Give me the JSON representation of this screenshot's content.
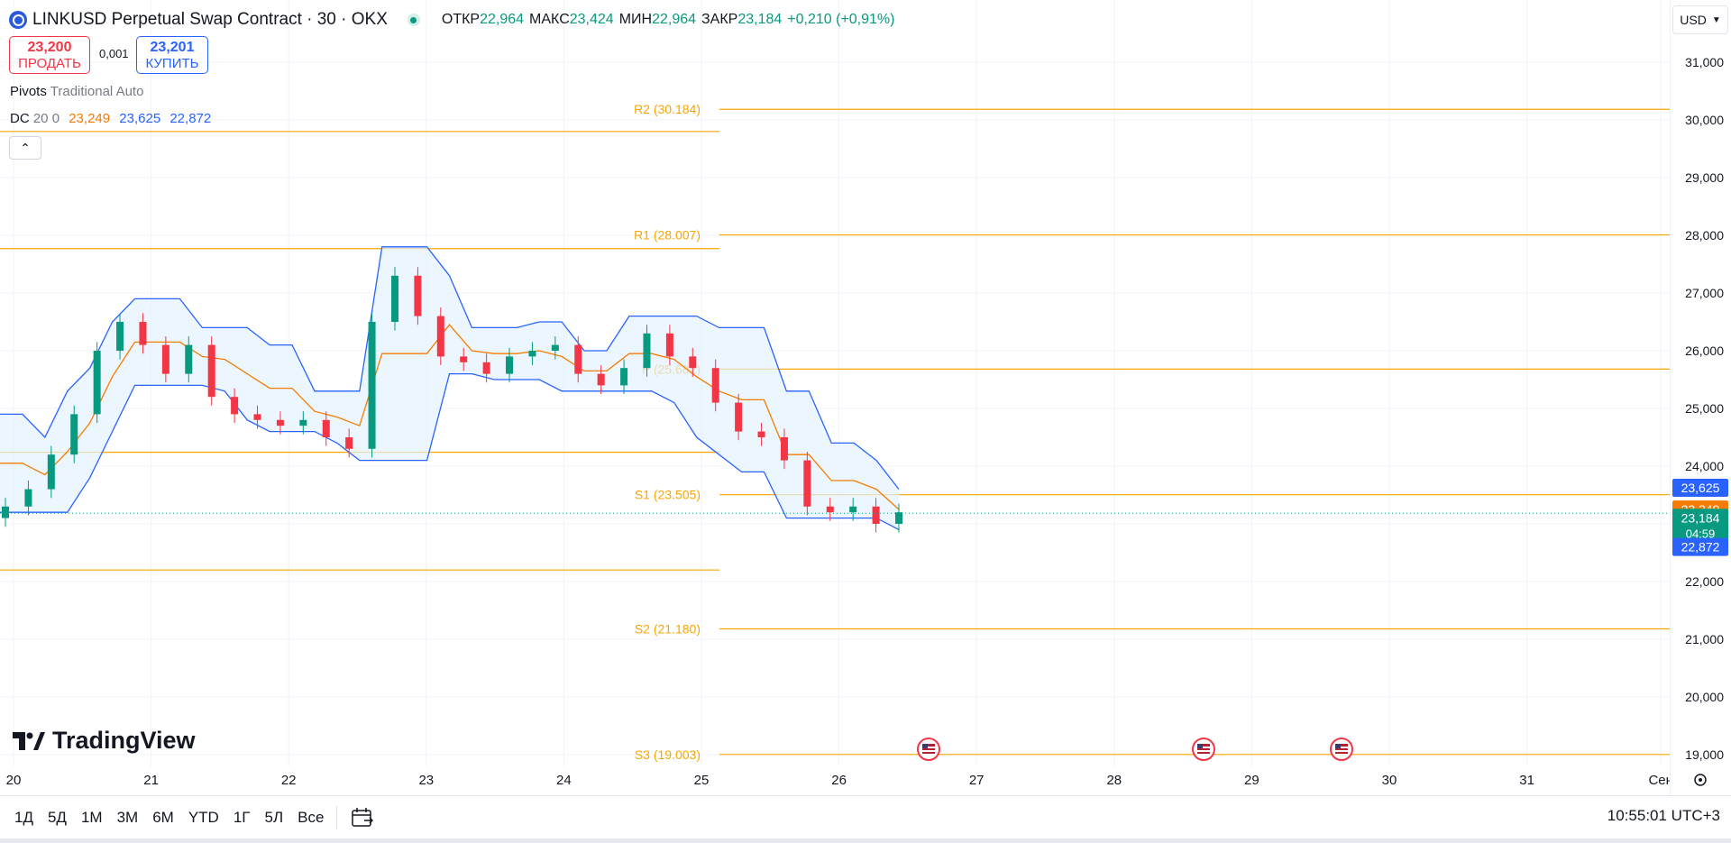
{
  "header": {
    "title": "LINKUSD Perpetual Swap Contract · 30 · OKX",
    "ohlc": [
      {
        "label": "ОТКР",
        "value": "22,964"
      },
      {
        "label": "МАКС",
        "value": "23,424"
      },
      {
        "label": "МИН",
        "value": "22,964"
      },
      {
        "label": "ЗАКР",
        "value": "23,184"
      }
    ],
    "change": "+0,210 (+0,91%)"
  },
  "trade": {
    "sell_price": "23,200",
    "sell_label": "ПРОДАТЬ",
    "spread": "0,001",
    "buy_price": "23,201",
    "buy_label": "КУПИТЬ"
  },
  "legend": {
    "pivots_name": "Pivots",
    "pivots_params": "Traditional Auto",
    "dc_name": "DC",
    "dc_params": "20 0",
    "dc_values": [
      "23,249",
      "23,625",
      "22,872"
    ],
    "dc_colors": [
      "#f57c00",
      "#2962ff",
      "#2962ff"
    ]
  },
  "currency": "USD",
  "brand": "TradingView",
  "toolbar": {
    "timeframes": [
      "1Д",
      "5Д",
      "1М",
      "3М",
      "6М",
      "YTD",
      "1Г",
      "5Л",
      "Все"
    ],
    "clock": "10:55:01 UTC+3"
  },
  "colors": {
    "up": "#089981",
    "down": "#f23645",
    "pivot": "#f7a600",
    "dc_basis": "#f57c00",
    "dc_band": "#2962ff",
    "dc_fill": "#e3f2fd"
  },
  "chart_data": {
    "type": "candlestick",
    "y_ticks": [
      "31,000",
      "30,000",
      "29,000",
      "28,000",
      "27,000",
      "26,000",
      "25,000",
      "24,000",
      "23,000",
      "22,000",
      "21,000",
      "20,000",
      "19,000"
    ],
    "y_tick_values": [
      31000,
      30000,
      29000,
      28000,
      27000,
      26000,
      25000,
      24000,
      23000,
      22000,
      21000,
      20000,
      19000
    ],
    "x_ticks": [
      "20",
      "21",
      "22",
      "23",
      "24",
      "25",
      "26",
      "27",
      "28",
      "29",
      "30",
      "31",
      "Сен"
    ],
    "pivot_levels_current": [
      {
        "name": "R2",
        "label": "R2 (30.184)",
        "value": 30.184
      },
      {
        "name": "R1",
        "label": "R1 (28.007)",
        "value": 28.007
      },
      {
        "name": "P",
        "label": "P (25.682)",
        "value": 25.682
      },
      {
        "name": "S1",
        "label": "S1 (23.505)",
        "value": 23.505
      },
      {
        "name": "S2",
        "label": "S2 (21.180)",
        "value": 21.18
      },
      {
        "name": "S3",
        "label": "S3 (19.003)",
        "value": 19.003
      }
    ],
    "pivot_levels_previous": [
      29.8,
      27.77,
      24.24,
      22.2
    ],
    "last_price": {
      "value": "23,184",
      "countdown": "04:59"
    },
    "dc_labels": {
      "upper": "23,625",
      "basis": "23,249",
      "lower": "22,872"
    },
    "donchian_upper": [
      24.9,
      24.9,
      24.5,
      25.3,
      25.7,
      26.5,
      26.9,
      26.9,
      26.9,
      26.4,
      26.4,
      26.4,
      26.1,
      26.1,
      25.3,
      25.3,
      25.3,
      27.8,
      27.8,
      27.8,
      27.3,
      26.4,
      26.4,
      26.4,
      26.5,
      26.5,
      26.0,
      26.0,
      26.6,
      26.6,
      26.6,
      26.6,
      26.4,
      26.4,
      26.4,
      25.3,
      25.3,
      24.4,
      24.4,
      24.1,
      23.6
    ],
    "donchian_lower": [
      23.2,
      23.2,
      23.2,
      23.2,
      23.8,
      24.6,
      25.4,
      25.4,
      25.4,
      25.4,
      25.3,
      24.8,
      24.6,
      24.6,
      24.6,
      24.4,
      24.1,
      24.1,
      24.1,
      24.1,
      25.6,
      25.6,
      25.5,
      25.5,
      25.5,
      25.3,
      25.3,
      25.3,
      25.3,
      25.3,
      25.1,
      24.5,
      24.2,
      23.9,
      23.9,
      23.1,
      23.1,
      23.1,
      23.1,
      23.1,
      22.9
    ],
    "closes": [
      23.3,
      23.6,
      24.2,
      24.9,
      26.0,
      26.5,
      26.1,
      25.6,
      26.1,
      25.2,
      24.9,
      24.8,
      24.7,
      24.8,
      24.5,
      24.3,
      26.5,
      27.3,
      26.6,
      25.9,
      25.8,
      25.6,
      25.9,
      26.0,
      26.1,
      25.6,
      25.4,
      25.7,
      26.3,
      25.9,
      25.7,
      25.1,
      24.6,
      24.5,
      24.1,
      23.3,
      23.2,
      23.3,
      23.0,
      23.2
    ]
  },
  "event_markers": [
    "26",
    "28",
    "29"
  ]
}
